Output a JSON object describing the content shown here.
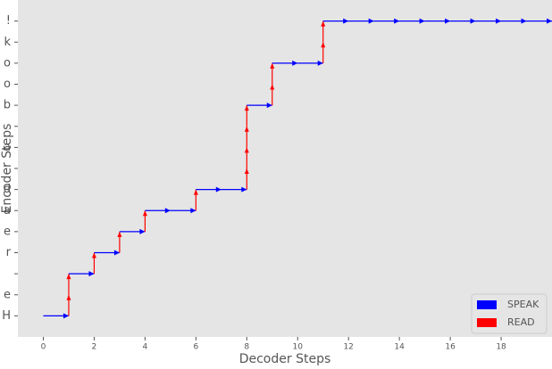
{
  "chart_data": {
    "type": "step-path",
    "xlabel": "Decoder Steps",
    "ylabel": "Encoder Steps",
    "y_categories": [
      "H",
      "e",
      null,
      "r",
      "e",
      "a",
      "d",
      null,
      "a",
      null,
      "b",
      "o",
      "o",
      "k",
      "!"
    ],
    "xlim": [
      -1,
      20
    ],
    "ylim": [
      -1,
      15
    ],
    "xticks": [
      0,
      2,
      4,
      6,
      8,
      10,
      12,
      14,
      16,
      18
    ],
    "x": [
      0,
      1,
      1,
      1,
      2,
      2,
      3,
      3,
      4,
      4,
      5,
      6,
      6,
      7,
      8,
      8,
      8,
      8,
      8,
      9,
      9,
      9,
      10,
      11,
      11,
      11,
      12,
      13,
      14,
      15,
      16,
      17,
      18,
      19,
      20
    ],
    "y": [
      0,
      0,
      1,
      2,
      2,
      3,
      3,
      4,
      4,
      5,
      5,
      5,
      6,
      6,
      6,
      7,
      8,
      9,
      10,
      10,
      11,
      12,
      12,
      12,
      13,
      14,
      14,
      14,
      14,
      14,
      14,
      14,
      14,
      14,
      14
    ],
    "series": [
      {
        "name": "SPEAK",
        "color": "#0000ff"
      },
      {
        "name": "READ",
        "color": "#ff0000"
      }
    ],
    "legend": "lower right",
    "background": "#e5e5e5"
  }
}
